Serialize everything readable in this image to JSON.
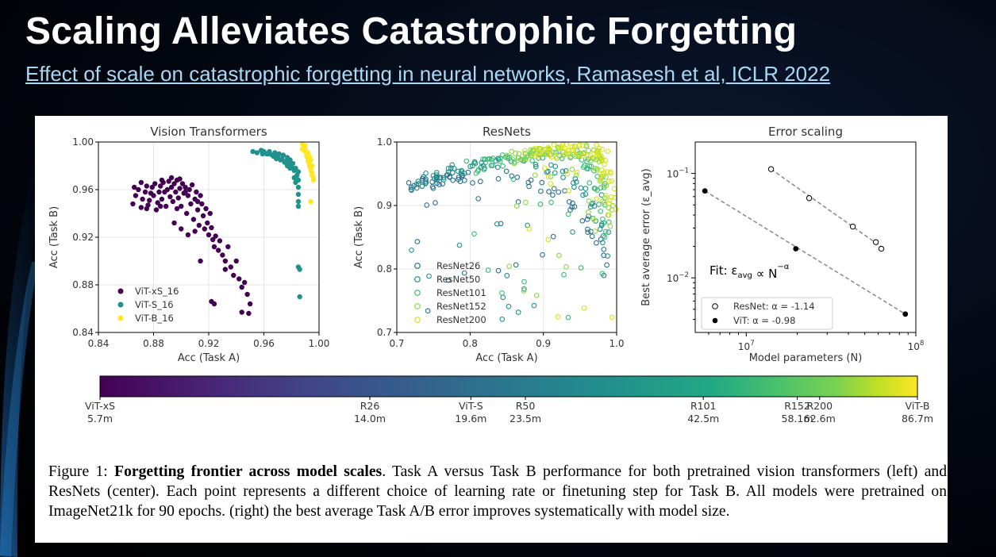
{
  "slide": {
    "title": "Scaling Alleviates Catastrophic Forgetting",
    "reference_link": "Effect of scale on catastrophic forgetting in neural networks, Ramasesh et al, ICLR 2022"
  },
  "caption": {
    "label": "Figure 1:",
    "bold": "Forgetting frontier across model scales",
    "text": ". Task A versus Task B performance for both pretrained vision transformers (left) and ResNets (center). Each point represents a different choice of learning rate or finetuning step for Task B. All models were pretrained on ImageNet21k for 90 epochs. (right) the best average Task A/B error improves systematically with model size."
  },
  "colors": {
    "vit_xs": "#440154",
    "vit_s": "#21918c",
    "vit_b": "#fde725",
    "resnet26": "#2c728e",
    "resnet50": "#21918c",
    "resnet101": "#3bbb75",
    "resnet152": "#8ed645",
    "resnet200": "#d8e219"
  },
  "chart_data": [
    {
      "type": "scatter",
      "title": "Vision Transformers",
      "xlabel": "Acc (Task A)",
      "ylabel": "Acc (Task B)",
      "xlim": [
        0.84,
        1.0
      ],
      "ylim": [
        0.84,
        1.0
      ],
      "xticks": [
        "0.84",
        "0.88",
        "0.92",
        "0.96",
        "1.00"
      ],
      "yticks": [
        "0.84",
        "0.88",
        "0.92",
        "0.96",
        "1.00"
      ],
      "grid": true,
      "legend_position": "bottom-left",
      "marker": "filled",
      "series": [
        {
          "name": "ViT-xS_16",
          "color": "#440154",
          "points": [
            [
              0.865,
              0.948
            ],
            [
              0.867,
              0.955
            ],
            [
              0.869,
              0.96
            ],
            [
              0.871,
              0.945
            ],
            [
              0.872,
              0.952
            ],
            [
              0.874,
              0.958
            ],
            [
              0.875,
              0.963
            ],
            [
              0.876,
              0.947
            ],
            [
              0.877,
              0.951
            ],
            [
              0.878,
              0.957
            ],
            [
              0.879,
              0.962
            ],
            [
              0.88,
              0.955
            ],
            [
              0.881,
              0.965
            ],
            [
              0.882,
              0.943
            ],
            [
              0.883,
              0.949
            ],
            [
              0.884,
              0.958
            ],
            [
              0.885,
              0.963
            ],
            [
              0.886,
              0.952
            ],
            [
              0.887,
              0.966
            ],
            [
              0.888,
              0.958
            ],
            [
              0.889,
              0.946
            ],
            [
              0.89,
              0.96
            ],
            [
              0.891,
              0.967
            ],
            [
              0.892,
              0.954
            ],
            [
              0.893,
              0.962
            ],
            [
              0.894,
              0.95
            ],
            [
              0.895,
              0.965
            ],
            [
              0.896,
              0.958
            ],
            [
              0.897,
              0.968
            ],
            [
              0.898,
              0.953
            ],
            [
              0.899,
              0.961
            ],
            [
              0.9,
              0.946
            ],
            [
              0.901,
              0.965
            ],
            [
              0.902,
              0.957
            ],
            [
              0.903,
              0.962
            ],
            [
              0.904,
              0.94
            ],
            [
              0.905,
              0.955
            ],
            [
              0.906,
              0.96
            ],
            [
              0.907,
              0.948
            ],
            [
              0.908,
              0.964
            ],
            [
              0.909,
              0.935
            ],
            [
              0.91,
              0.952
            ],
            [
              0.911,
              0.958
            ],
            [
              0.912,
              0.943
            ],
            [
              0.913,
              0.93
            ],
            [
              0.914,
              0.955
            ],
            [
              0.915,
              0.948
            ],
            [
              0.916,
              0.938
            ],
            [
              0.917,
              0.927
            ],
            [
              0.918,
              0.944
            ],
            [
              0.919,
              0.932
            ],
            [
              0.92,
              0.922
            ],
            [
              0.921,
              0.94
            ],
            [
              0.922,
              0.928
            ],
            [
              0.923,
              0.918
            ],
            [
              0.924,
              0.912
            ],
            [
              0.925,
              0.921
            ],
            [
              0.927,
              0.909
            ],
            [
              0.928,
              0.917
            ],
            [
              0.93,
              0.905
            ],
            [
              0.932,
              0.9
            ],
            [
              0.934,
              0.912
            ],
            [
              0.936,
              0.895
            ],
            [
              0.938,
              0.888
            ],
            [
              0.94,
              0.9
            ],
            [
              0.942,
              0.885
            ],
            [
              0.944,
              0.878
            ],
            [
              0.946,
              0.882
            ],
            [
              0.948,
              0.872
            ],
            [
              0.95,
              0.864
            ],
            [
              0.944,
              0.857
            ],
            [
              0.949,
              0.856
            ],
            [
              0.922,
              0.866
            ],
            [
              0.924,
              0.864
            ],
            [
              0.932,
              0.893
            ],
            [
              0.914,
              0.9
            ],
            [
              0.91,
              0.925
            ],
            [
              0.905,
              0.922
            ],
            [
              0.9,
              0.927
            ],
            [
              0.895,
              0.932
            ],
            [
              0.903,
              0.958
            ],
            [
              0.897,
              0.944
            ],
            [
              0.885,
              0.946
            ],
            [
              0.875,
              0.944
            ],
            [
              0.866,
              0.962
            ],
            [
              0.871,
              0.966
            ],
            [
              0.886,
              0.968
            ],
            [
              0.893,
              0.97
            ],
            [
              0.899,
              0.969
            ],
            [
              0.912,
              0.95
            ]
          ]
        },
        {
          "name": "ViT-S_16",
          "color": "#21918c",
          "points": [
            [
              0.952,
              0.992
            ],
            [
              0.955,
              0.991
            ],
            [
              0.958,
              0.993
            ],
            [
              0.96,
              0.992
            ],
            [
              0.962,
              0.99
            ],
            [
              0.964,
              0.992
            ],
            [
              0.966,
              0.989
            ],
            [
              0.968,
              0.991
            ],
            [
              0.97,
              0.988
            ],
            [
              0.971,
              0.99
            ],
            [
              0.973,
              0.986
            ],
            [
              0.974,
              0.989
            ],
            [
              0.976,
              0.984
            ],
            [
              0.977,
              0.987
            ],
            [
              0.978,
              0.982
            ],
            [
              0.979,
              0.985
            ],
            [
              0.98,
              0.979
            ],
            [
              0.981,
              0.982
            ],
            [
              0.982,
              0.976
            ],
            [
              0.983,
              0.978
            ],
            [
              0.984,
              0.972
            ],
            [
              0.985,
              0.975
            ],
            [
              0.985,
              0.968
            ],
            [
              0.985,
              0.962
            ],
            [
              0.985,
              0.956
            ],
            [
              0.985,
              0.95
            ],
            [
              0.985,
              0.946
            ],
            [
              0.985,
              0.895
            ],
            [
              0.986,
              0.893
            ],
            [
              0.986,
              0.87
            ],
            [
              0.967,
              0.988
            ],
            [
              0.969,
              0.986
            ],
            [
              0.972,
              0.985
            ],
            [
              0.975,
              0.983
            ],
            [
              0.977,
              0.98
            ],
            [
              0.979,
              0.978
            ],
            [
              0.982,
              0.97
            ],
            [
              0.983,
              0.966
            ],
            [
              0.963,
              0.99
            ],
            [
              0.959,
              0.99
            ]
          ]
        },
        {
          "name": "ViT-B_16",
          "color": "#fde725",
          "points": [
            [
              0.988,
              0.998
            ],
            [
              0.989,
              0.996
            ],
            [
              0.99,
              0.994
            ],
            [
              0.99,
              0.992
            ],
            [
              0.991,
              0.99
            ],
            [
              0.991,
              0.988
            ],
            [
              0.992,
              0.986
            ],
            [
              0.992,
              0.984
            ],
            [
              0.993,
              0.982
            ],
            [
              0.993,
              0.98
            ],
            [
              0.994,
              0.978
            ],
            [
              0.994,
              0.976
            ],
            [
              0.995,
              0.974
            ],
            [
              0.995,
              0.972
            ],
            [
              0.996,
              0.97
            ],
            [
              0.996,
              0.968
            ],
            [
              0.994,
              0.95
            ],
            [
              0.988,
              0.994
            ],
            [
              0.99,
              0.997
            ],
            [
              0.992,
              0.991
            ],
            [
              0.993,
              0.988
            ],
            [
              0.994,
              0.985
            ],
            [
              0.995,
              0.98
            ]
          ]
        }
      ]
    },
    {
      "type": "scatter",
      "title": "ResNets",
      "xlabel": "Acc (Task A)",
      "ylabel": "Acc (Task B)",
      "xlim": [
        0.7,
        1.0
      ],
      "ylim": [
        0.7,
        1.0
      ],
      "xticks": [
        "0.7",
        "0.8",
        "0.9",
        "1.0"
      ],
      "yticks": [
        "0.7",
        "0.8",
        "0.9",
        "1.0"
      ],
      "grid": true,
      "legend_position": "bottom-left",
      "marker": "open",
      "series": [
        {
          "name": "ResNet26",
          "color": "#2c728e"
        },
        {
          "name": "ResNet50",
          "color": "#21918c"
        },
        {
          "name": "ResNet101",
          "color": "#3bbb75"
        },
        {
          "name": "ResNet152",
          "color": "#8ed645"
        },
        {
          "name": "ResNet200",
          "color": "#d8e219"
        }
      ],
      "frontier_anchors": {
        "ResNet26": {
          "top_left": [
            0.72,
            0.94
          ],
          "top_peak": [
            0.8,
            0.955
          ],
          "bottom_right": [
            0.99,
            0.805
          ]
        },
        "ResNet50": {
          "top_left": [
            0.72,
            0.945
          ],
          "top_peak": [
            0.85,
            0.975
          ],
          "bottom_right": [
            0.99,
            0.84
          ]
        },
        "ResNet101": {
          "top_left": [
            0.8,
            0.97
          ],
          "top_peak": [
            0.92,
            0.99
          ],
          "bottom_right": [
            0.99,
            0.86
          ]
        },
        "ResNet152": {
          "top_left": [
            0.85,
            0.985
          ],
          "top_peak": [
            0.95,
            0.995
          ],
          "bottom_right": [
            0.99,
            0.88
          ]
        },
        "ResNet200": {
          "top_left": [
            0.88,
            0.992
          ],
          "top_peak": [
            0.96,
            0.998
          ],
          "bottom_right": [
            0.995,
            0.9
          ]
        }
      }
    },
    {
      "type": "line",
      "title": "Error scaling",
      "xlabel": "Model parameters (N)",
      "ylabel": "Best average error (ε_avg)",
      "xscale": "log",
      "yscale": "log",
      "xlim": [
        5000000,
        100000000
      ],
      "ylim": [
        0.003,
        0.2
      ],
      "xticks": [
        "10^7",
        "10^8"
      ],
      "yticks": [
        "10^-2",
        "10^-1"
      ],
      "legend_position": "bottom-left",
      "annotation": "Fit: ε_avg ∝ N^-α",
      "series": [
        {
          "name": "ResNet: α = -1.14",
          "marker": "open",
          "points": [
            [
              14000000,
              0.11
            ],
            [
              23500000,
              0.058
            ],
            [
              42500000,
              0.031
            ],
            [
              58100000,
              0.022
            ],
            [
              62600000,
              0.019
            ]
          ],
          "fit": [
            [
              14000000,
              0.11
            ],
            [
              65000000,
              0.019
            ]
          ]
        },
        {
          "name": "ViT: α = -0.98",
          "marker": "filled",
          "points": [
            [
              5700000,
              0.068
            ],
            [
              19600000,
              0.019
            ],
            [
              86700000,
              0.0045
            ]
          ],
          "fit": [
            [
              5700000,
              0.068
            ],
            [
              86700000,
              0.0045
            ]
          ]
        }
      ]
    }
  ],
  "colorbar": {
    "labels": [
      {
        "name": "ViT-xS",
        "value": "5.7m",
        "n": 5700000
      },
      {
        "name": "R26",
        "value": "14.0m",
        "n": 14000000
      },
      {
        "name": "ViT-S",
        "value": "19.6m",
        "n": 19600000
      },
      {
        "name": "R50",
        "value": "23.5m",
        "n": 23500000
      },
      {
        "name": "R101",
        "value": "42.5m",
        "n": 42500000
      },
      {
        "name": "R152",
        "value": "58.1m",
        "n": 58100000
      },
      {
        "name": "R200",
        "value": "62.6m",
        "n": 62600000
      },
      {
        "name": "ViT-B",
        "value": "86.7m",
        "n": 86700000
      }
    ]
  }
}
